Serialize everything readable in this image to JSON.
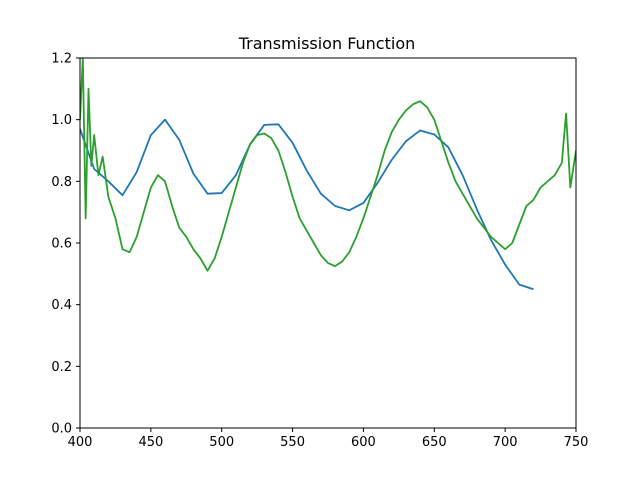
{
  "chart_data": {
    "type": "line",
    "title": "Transmission Function",
    "xlabel": "",
    "ylabel": "",
    "xlim": [
      400,
      750
    ],
    "ylim": [
      0.0,
      1.2
    ],
    "x_ticks": [
      400,
      450,
      500,
      550,
      600,
      650,
      700,
      750
    ],
    "y_ticks": [
      0.0,
      0.2,
      0.4,
      0.6,
      0.8,
      1.0,
      1.2
    ],
    "x_tick_labels": [
      "400",
      "450",
      "500",
      "550",
      "600",
      "650",
      "700",
      "750"
    ],
    "y_tick_labels": [
      "0.0",
      "0.2",
      "0.4",
      "0.6",
      "0.8",
      "1.0",
      "1.2"
    ],
    "grid": false,
    "legend": "none",
    "series": [
      {
        "color": "#1f77b4",
        "x": [
          400,
          410,
          420,
          430,
          440,
          450,
          460,
          470,
          480,
          490,
          500,
          510,
          520,
          530,
          540,
          550,
          560,
          570,
          580,
          590,
          600,
          610,
          620,
          630,
          640,
          650,
          660,
          670,
          680,
          690,
          700,
          710,
          720
        ],
        "y": [
          0.97,
          0.84,
          0.8,
          0.755,
          0.83,
          0.95,
          1.0,
          0.935,
          0.825,
          0.76,
          0.762,
          0.82,
          0.92,
          0.983,
          0.985,
          0.925,
          0.835,
          0.76,
          0.72,
          0.706,
          0.73,
          0.795,
          0.87,
          0.93,
          0.965,
          0.952,
          0.91,
          0.82,
          0.71,
          0.61,
          0.53,
          0.465,
          0.45
        ]
      },
      {
        "color": "#2ca02c",
        "x": [
          400,
          402,
          404,
          406,
          408,
          410,
          413,
          416,
          420,
          425,
          430,
          435,
          440,
          445,
          450,
          455,
          460,
          465,
          470,
          475,
          480,
          485,
          490,
          495,
          500,
          505,
          510,
          515,
          520,
          525,
          530,
          535,
          540,
          545,
          550,
          555,
          560,
          565,
          570,
          575,
          580,
          585,
          590,
          595,
          600,
          605,
          610,
          615,
          620,
          625,
          630,
          635,
          640,
          645,
          650,
          655,
          660,
          665,
          670,
          675,
          680,
          685,
          690,
          695,
          700,
          705,
          710,
          715,
          720,
          725,
          730,
          735,
          740,
          743,
          746,
          750
        ],
        "y": [
          1.0,
          1.2,
          0.68,
          1.1,
          0.85,
          0.95,
          0.82,
          0.88,
          0.75,
          0.68,
          0.58,
          0.57,
          0.62,
          0.7,
          0.78,
          0.82,
          0.8,
          0.72,
          0.65,
          0.62,
          0.58,
          0.55,
          0.51,
          0.55,
          0.62,
          0.7,
          0.78,
          0.86,
          0.92,
          0.95,
          0.955,
          0.94,
          0.9,
          0.83,
          0.75,
          0.68,
          0.64,
          0.6,
          0.56,
          0.535,
          0.525,
          0.54,
          0.57,
          0.62,
          0.68,
          0.75,
          0.82,
          0.9,
          0.96,
          1.0,
          1.03,
          1.05,
          1.06,
          1.04,
          1.0,
          0.93,
          0.86,
          0.8,
          0.76,
          0.72,
          0.68,
          0.65,
          0.62,
          0.6,
          0.58,
          0.6,
          0.66,
          0.72,
          0.74,
          0.78,
          0.8,
          0.82,
          0.86,
          1.02,
          0.78,
          0.9
        ]
      }
    ]
  }
}
